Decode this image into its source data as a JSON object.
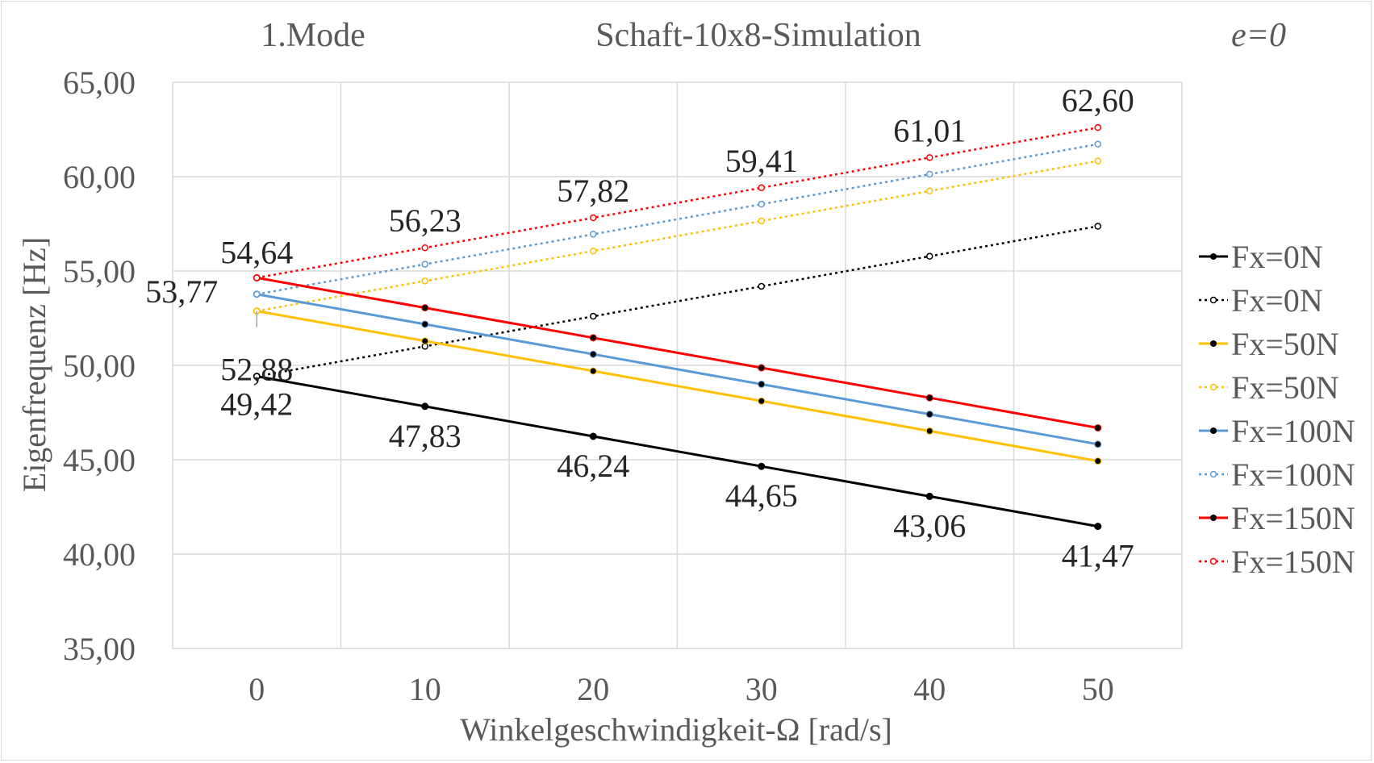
{
  "chart_data": {
    "type": "line",
    "title": "Schaft-10x8-Simulation",
    "title_left": "1.Mode",
    "title_right": "e=0",
    "xlabel": "Winkelgeschwindigkeit-Ω   [rad/s]",
    "ylabel": "Eigenfrequenz  [Hz]",
    "x": [
      0,
      10,
      20,
      30,
      40,
      50
    ],
    "x_ticks": [
      "0",
      "10",
      "20",
      "30",
      "40",
      "50"
    ],
    "xlim": [
      -5,
      55
    ],
    "ylim": [
      35,
      65
    ],
    "y_ticks": [
      "35,00",
      "40,00",
      "45,00",
      "50,00",
      "55,00",
      "60,00",
      "65,00"
    ],
    "y_tick_values": [
      35,
      40,
      45,
      50,
      55,
      60,
      65
    ],
    "grid": true,
    "legend_position": "right",
    "series": [
      {
        "name": "Fx=0N",
        "color": "#000000",
        "dashed": false,
        "values": [
          49.42,
          47.83,
          46.24,
          44.65,
          43.06,
          41.47
        ]
      },
      {
        "name": "Fx=0N",
        "color": "#000000",
        "dashed": true,
        "values": [
          49.42,
          51.01,
          52.6,
          54.19,
          55.78,
          57.37
        ]
      },
      {
        "name": "Fx=50N",
        "color": "#ffc000",
        "dashed": false,
        "values": [
          52.88,
          51.29,
          49.7,
          48.11,
          46.52,
          44.93
        ]
      },
      {
        "name": "Fx=50N",
        "color": "#ffc000",
        "dashed": true,
        "values": [
          52.88,
          54.47,
          56.06,
          57.65,
          59.24,
          60.83
        ]
      },
      {
        "name": "Fx=100N",
        "color": "#5b9bd5",
        "dashed": false,
        "values": [
          53.77,
          52.18,
          50.59,
          49.0,
          47.41,
          45.82
        ]
      },
      {
        "name": "Fx=100N",
        "color": "#5b9bd5",
        "dashed": true,
        "values": [
          53.77,
          55.36,
          56.95,
          58.54,
          60.13,
          61.72
        ]
      },
      {
        "name": "Fx=150N",
        "color": "#ff0000",
        "dashed": false,
        "values": [
          54.64,
          53.05,
          51.46,
          49.87,
          48.28,
          46.69
        ]
      },
      {
        "name": "Fx=150N",
        "color": "#ff0000",
        "dashed": true,
        "values": [
          54.64,
          56.23,
          57.82,
          59.41,
          61.01,
          62.6
        ]
      }
    ],
    "data_labels": [
      {
        "text": "54,64",
        "x": 0,
        "y": 54.64
      },
      {
        "text": "53,77",
        "x": 0,
        "y": 53.77
      },
      {
        "text": "52,88",
        "x": 0,
        "y": 52.88
      },
      {
        "text": "49,42",
        "x": 0,
        "y": 49.42
      },
      {
        "text": "56,23",
        "x": 10,
        "y": 56.23
      },
      {
        "text": "57,82",
        "x": 20,
        "y": 57.82
      },
      {
        "text": "59,41",
        "x": 30,
        "y": 59.41
      },
      {
        "text": "61,01",
        "x": 40,
        "y": 61.01
      },
      {
        "text": "62,60",
        "x": 50,
        "y": 62.6
      },
      {
        "text": "47,83",
        "x": 10,
        "y": 47.83
      },
      {
        "text": "46,24",
        "x": 20,
        "y": 46.24
      },
      {
        "text": "44,65",
        "x": 30,
        "y": 44.65
      },
      {
        "text": "43,06",
        "x": 40,
        "y": 43.06
      },
      {
        "text": "41,47",
        "x": 50,
        "y": 41.47
      }
    ]
  }
}
